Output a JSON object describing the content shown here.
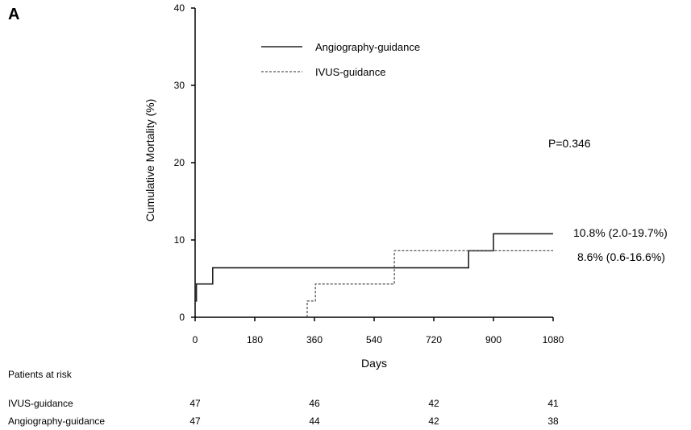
{
  "chart_data": {
    "type": "line",
    "panel_label": "A",
    "title": "",
    "xlabel": "Days",
    "ylabel": "Cumulative Mortality (%)",
    "xlim": [
      0,
      1080
    ],
    "ylim": [
      0,
      40
    ],
    "x_ticks": [
      0,
      180,
      360,
      540,
      720,
      900,
      1080
    ],
    "y_ticks": [
      0,
      10,
      20,
      30,
      40
    ],
    "grid": false,
    "legend_position": "top-center",
    "series": [
      {
        "name": "Angiography-guidance",
        "style": "solid",
        "color": "#222222",
        "x": [
          0,
          0,
          4,
          4,
          53,
          53,
          825,
          825,
          900,
          900,
          1080
        ],
        "y": [
          2.1,
          2.1,
          2.1,
          4.3,
          4.3,
          6.4,
          6.4,
          8.6,
          8.6,
          10.8,
          10.8
        ]
      },
      {
        "name": "IVUS-guidance",
        "style": "dashed",
        "color": "#555555",
        "x": [
          338,
          338,
          363,
          363,
          601,
          601,
          1080
        ],
        "y": [
          0,
          2.1,
          2.1,
          4.3,
          4.3,
          8.6,
          8.6
        ]
      }
    ],
    "annotations": {
      "p_value": "P=0.346",
      "angiography_final": "10.8% (2.0-19.7%)",
      "ivus_final": "8.6% (0.6-16.6%)"
    },
    "risk_table": {
      "title": "Patients at risk",
      "rows": [
        {
          "label": "IVUS-guidance",
          "values": [
            "47",
            "46",
            "42",
            "41"
          ]
        },
        {
          "label": "Angiography-guidance",
          "values": [
            "47",
            "44",
            "42",
            "38"
          ]
        }
      ]
    }
  }
}
